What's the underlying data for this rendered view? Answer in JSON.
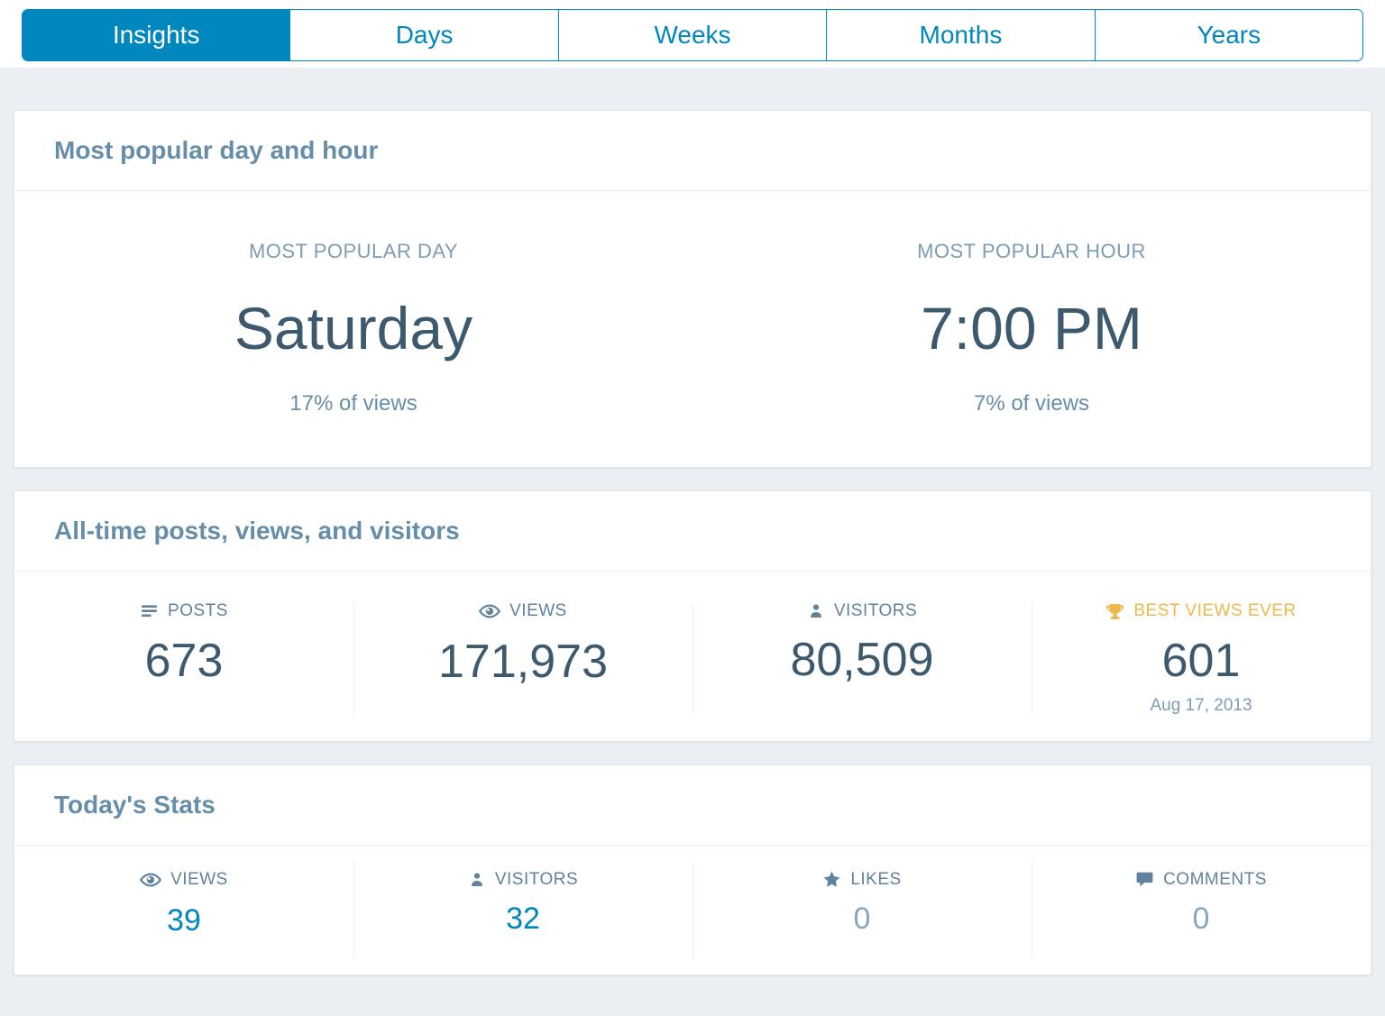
{
  "colors": {
    "accent_blue": "#0087be",
    "dark_slate": "#3d596d",
    "header_blue": "#668eaa",
    "muted_blue": "#87a6bc",
    "gold": "#f0b849",
    "page_background": "#e9eff3"
  },
  "tabs": [
    {
      "label": "Insights",
      "active": true
    },
    {
      "label": "Days",
      "active": false
    },
    {
      "label": "Weeks",
      "active": false
    },
    {
      "label": "Months",
      "active": false
    },
    {
      "label": "Years",
      "active": false
    }
  ],
  "popular": {
    "title": "Most popular day and hour",
    "day": {
      "label": "MOST POPULAR DAY",
      "value": "Saturday",
      "sub": "17% of views"
    },
    "hour": {
      "label": "MOST POPULAR HOUR",
      "value": "7:00 PM",
      "sub": "7% of views"
    }
  },
  "alltime": {
    "title": "All-time posts, views, and visitors",
    "stats": [
      {
        "icon": "posts-icon",
        "label": "POSTS",
        "value": "673"
      },
      {
        "icon": "eye-icon",
        "label": "VIEWS",
        "value": "171,973"
      },
      {
        "icon": "person-icon",
        "label": "VISITORS",
        "value": "80,509"
      },
      {
        "icon": "trophy-icon",
        "label": "BEST VIEWS EVER",
        "value": "601",
        "date": "Aug 17, 2013",
        "gold": true
      }
    ]
  },
  "today": {
    "title": "Today's Stats",
    "stats": [
      {
        "icon": "eye-icon",
        "label": "VIEWS",
        "value": "39",
        "linked": true
      },
      {
        "icon": "person-icon",
        "label": "VISITORS",
        "value": "32",
        "linked": true
      },
      {
        "icon": "star-icon",
        "label": "LIKES",
        "value": "0",
        "zero": true
      },
      {
        "icon": "comment-icon",
        "label": "COMMENTS",
        "value": "0",
        "zero": true
      }
    ]
  }
}
